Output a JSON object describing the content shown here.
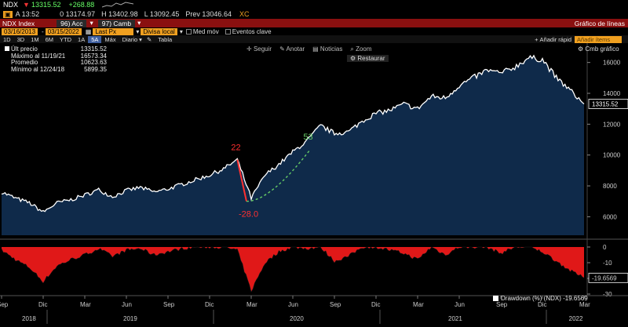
{
  "header": {
    "ticker": "NDX",
    "last": "13315.52",
    "change": "+268.88",
    "row2": {
      "a": "A 13:52",
      "o": "0 13174.97",
      "h": "H 13402.98",
      "l": "L 13092.45",
      "prev": "Prev 13046.64",
      "xc": "XC"
    },
    "acc_menu": "96) Acc",
    "camb_menu": "97) Camb",
    "index_name": "NDX Index",
    "chart_type": "Gráfico de líneas"
  },
  "toolbar": {
    "date_from": "03/16/2013",
    "date_to": "03/15/2022",
    "last_px": "Last Px",
    "divisa": "Divisa local",
    "med_mov": "Med móv",
    "eventos": "Eventos clave",
    "periods": [
      "1D",
      "3D",
      "1M",
      "6M",
      "YTD",
      "1A",
      "5A",
      "Máx"
    ],
    "active_period": "5A",
    "freq": "Diario",
    "tabla": "Tabla",
    "add_rapid": "Añadir rápid",
    "add_placeholder": "Añadir ítems"
  },
  "actions": {
    "seguir": "Seguir",
    "anotar": "Anotar",
    "noticias": "Noticias",
    "zoom": "Zoom",
    "restaurar": "Restaurar",
    "cmb": "Cmb gráfico"
  },
  "legend": [
    {
      "label": "Últ precio",
      "value": "13315.52"
    },
    {
      "label": "Máximo al 11/19/21",
      "value": "16573.34"
    },
    {
      "label": "Promedio",
      "value": "10623.63"
    },
    {
      "label": "Mínimo al 12/24/18",
      "value": "5899.35"
    }
  ],
  "annotations": {
    "pct_up_before": "22",
    "pct_drop": "-28.0",
    "pct_recovery": "53"
  },
  "drawdown_label": "Drawdown (%) (NDX) -19.6569",
  "colors": {
    "line": "#ffffff",
    "area": "#0f2a4a",
    "drawdown": "#e01818",
    "ann_red": "#ff3030",
    "ann_green": "#66cc66"
  },
  "chart_data": {
    "type": "area",
    "title": "NDX Index",
    "x": [
      "2018-09",
      "2018-10",
      "2018-11",
      "2018-12",
      "2019-01",
      "2019-02",
      "2019-03",
      "2019-04",
      "2019-05",
      "2019-06",
      "2019-07",
      "2019-08",
      "2019-09",
      "2019-10",
      "2019-11",
      "2019-12",
      "2020-01",
      "2020-02",
      "2020-03",
      "2020-04",
      "2020-05",
      "2020-06",
      "2020-07",
      "2020-08",
      "2020-09",
      "2020-10",
      "2020-11",
      "2020-12",
      "2021-01",
      "2021-02",
      "2021-03",
      "2021-04",
      "2021-05",
      "2021-06",
      "2021-07",
      "2021-08",
      "2021-09",
      "2021-10",
      "2021-11",
      "2021-12",
      "2022-01",
      "2022-02",
      "2022-03"
    ],
    "series": [
      {
        "name": "NDX",
        "values": [
          7600,
          7200,
          6900,
          6300,
          6900,
          7100,
          7400,
          7750,
          7300,
          7700,
          7900,
          7600,
          7800,
          8100,
          8400,
          8700,
          9100,
          9700,
          7200,
          8700,
          9400,
          10200,
          10900,
          11900,
          11400,
          11500,
          12200,
          12700,
          12900,
          13300,
          13000,
          13800,
          13700,
          14500,
          15000,
          15500,
          15300,
          15700,
          16300,
          16200,
          15000,
          14200,
          13315
        ]
      },
      {
        "name": "Drawdown (%)",
        "values": [
          -2,
          -8,
          -13,
          -22,
          -12,
          -8,
          -5,
          -1,
          -6,
          -2,
          -1,
          -5,
          -3,
          -1,
          0,
          0,
          0,
          -2,
          -28,
          -10,
          -3,
          0,
          -1,
          0,
          -9,
          -6,
          0,
          0,
          -2,
          -4,
          -8,
          0,
          -5,
          0,
          0,
          0,
          -4,
          0,
          0,
          -3,
          -9,
          -15,
          -19.66
        ]
      }
    ],
    "ylim": [
      4800,
      17000
    ],
    "y_ticks": [
      6000,
      8000,
      10000,
      12000,
      14000,
      16000
    ],
    "y2_ticks": [
      0,
      -10,
      -20,
      -30
    ],
    "x_month_labels": [
      "Sep",
      "Dic",
      "Mar",
      "Jun",
      "Sep",
      "Dic",
      "Mar",
      "Jun",
      "Sep",
      "Dic",
      "Mar",
      "Jun",
      "Sep",
      "Dic",
      "Mar"
    ],
    "x_year_labels": [
      "2018",
      "2019",
      "2020",
      "2021",
      "2022"
    ]
  }
}
